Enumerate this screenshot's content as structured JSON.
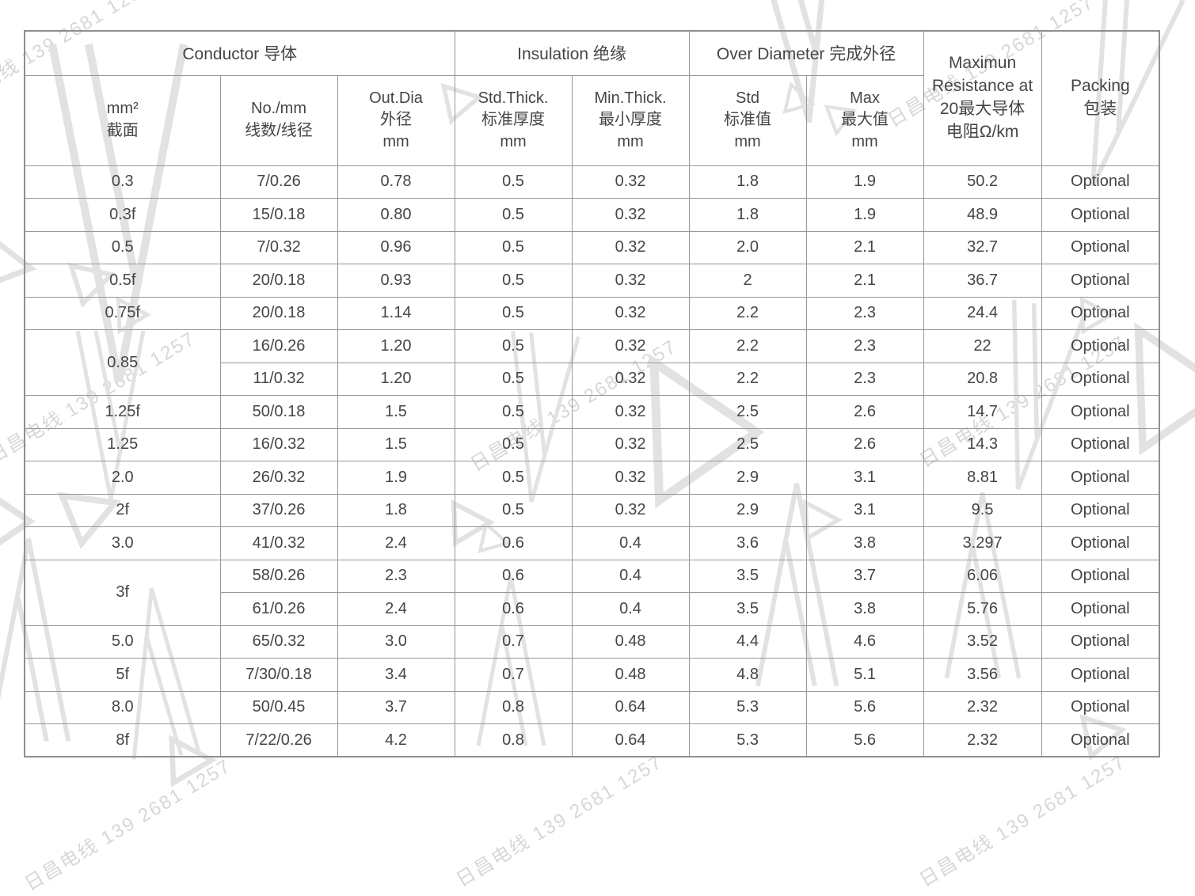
{
  "watermark": {
    "text": "日昌电线 139 2681 1257",
    "color": "#d7d7d7"
  },
  "colors": {
    "border": "#979797",
    "text": "#454545",
    "background": "#ffffff"
  },
  "table": {
    "header": {
      "conductor": "Conductor 导体",
      "insulation": "Insulation 绝缘",
      "over_diameter": "Over Diameter 完成外径",
      "max_resistance_lines": [
        "Maximun",
        "Resistance at",
        "20最大导体",
        "电阻Ω/km"
      ],
      "packing_lines": [
        "Packing",
        "包装"
      ],
      "sub_headers": [
        [
          "mm²",
          "截面"
        ],
        [
          "No./mm",
          "线数/线径"
        ],
        [
          "Out.Dia",
          "外径",
          "mm"
        ],
        [
          "Std.Thick.",
          "标准厚度",
          "mm"
        ],
        [
          "Min.Thick.",
          "最小厚度",
          "mm"
        ],
        [
          "Std",
          "标准值",
          "mm"
        ],
        [
          "Max",
          "最大值",
          "mm"
        ]
      ]
    },
    "rows": [
      {
        "c": [
          "0.3",
          "7/0.26",
          "0.78",
          "0.5",
          "0.32",
          "1.8",
          "1.9",
          "50.2",
          "Optional"
        ]
      },
      {
        "c": [
          "0.3f",
          "15/0.18",
          "0.80",
          "0.5",
          "0.32",
          "1.8",
          "1.9",
          "48.9",
          "Optional"
        ]
      },
      {
        "c": [
          "0.5",
          "7/0.32",
          "0.96",
          "0.5",
          "0.32",
          "2.0",
          "2.1",
          "32.7",
          "Optional"
        ]
      },
      {
        "c": [
          "0.5f",
          "20/0.18",
          "0.93",
          "0.5",
          "0.32",
          "2",
          "2.1",
          "36.7",
          "Optional"
        ]
      },
      {
        "c": [
          "0.75f",
          "20/0.18",
          "1.14",
          "0.5",
          "0.32",
          "2.2",
          "2.3",
          "24.4",
          "Optional"
        ]
      },
      {
        "c": [
          {
            "v": "0.85",
            "rs": 2
          },
          "16/0.26",
          "1.20",
          "0.5",
          "0.32",
          "2.2",
          "2.3",
          "22",
          "Optional"
        ]
      },
      {
        "c": [
          "11/0.32",
          "1.20",
          "0.5",
          "0.32",
          "2.2",
          "2.3",
          "20.8",
          "Optional"
        ]
      },
      {
        "c": [
          "1.25f",
          "50/0.18",
          "1.5",
          "0.5",
          "0.32",
          "2.5",
          "2.6",
          "14.7",
          "Optional"
        ]
      },
      {
        "c": [
          "1.25",
          "16/0.32",
          "1.5",
          "0.5",
          "0.32",
          "2.5",
          "2.6",
          "14.3",
          "Optional"
        ]
      },
      {
        "c": [
          "2.0",
          "26/0.32",
          "1.9",
          "0.5",
          "0.32",
          "2.9",
          "3.1",
          "8.81",
          "Optional"
        ]
      },
      {
        "c": [
          "2f",
          "37/0.26",
          "1.8",
          "0.5",
          "0.32",
          "2.9",
          "3.1",
          "9.5",
          "Optional"
        ]
      },
      {
        "c": [
          "3.0",
          "41/0.32",
          "2.4",
          "0.6",
          "0.4",
          "3.6",
          "3.8",
          "3.297",
          "Optional"
        ]
      },
      {
        "c": [
          {
            "v": "3f",
            "rs": 2
          },
          "58/0.26",
          "2.3",
          "0.6",
          "0.4",
          "3.5",
          "3.7",
          "6.06",
          "Optional"
        ]
      },
      {
        "c": [
          "61/0.26",
          "2.4",
          "0.6",
          "0.4",
          "3.5",
          "3.8",
          "5.76",
          "Optional"
        ]
      },
      {
        "c": [
          "5.0",
          "65/0.32",
          "3.0",
          "0.7",
          "0.48",
          "4.4",
          "4.6",
          "3.52",
          "Optional"
        ]
      },
      {
        "c": [
          "5f",
          "7/30/0.18",
          "3.4",
          "0.7",
          "0.48",
          "4.8",
          "5.1",
          "3.56",
          "Optional"
        ]
      },
      {
        "c": [
          "8.0",
          "50/0.45",
          "3.7",
          "0.8",
          "0.64",
          "5.3",
          "5.6",
          "2.32",
          "Optional"
        ]
      },
      {
        "c": [
          "8f",
          "7/22/0.26",
          "4.2",
          "0.8",
          "0.64",
          "5.3",
          "5.6",
          "2.32",
          "Optional"
        ]
      }
    ]
  }
}
